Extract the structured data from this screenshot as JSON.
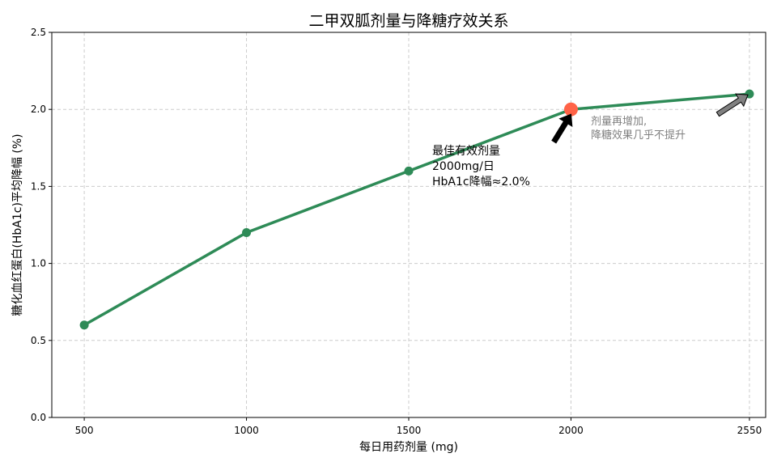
{
  "chart_data": {
    "type": "line",
    "title": "二甲双胍剂量与降糖疗效关系",
    "xlabel": "每日用药剂量 (mg)",
    "ylabel": "糖化血红蛋白(HbA1c)平均降幅 (%)",
    "x": [
      500,
      1000,
      1500,
      2000,
      2550
    ],
    "x_tick_labels": [
      "500",
      "1000",
      "1500",
      "2000",
      "2550"
    ],
    "y_ticks": [
      "0.0",
      "0.5",
      "1.0",
      "1.5",
      "2.0",
      "2.5"
    ],
    "ylim": [
      0,
      2.5
    ],
    "grid": true,
    "series": [
      {
        "values": [
          0.6,
          1.2,
          1.6,
          2.0,
          2.1
        ]
      }
    ],
    "highlight": {
      "x": 2000,
      "y": 2.0
    },
    "annotations": [
      {
        "lines": [
          "最佳有效剂量",
          "2000mg/日",
          "HbA1c降幅≈2.0%"
        ],
        "target_x": 2000,
        "target_y": 2.0
      },
      {
        "lines": [
          "剂量再增加,",
          "降糖效果几乎不提升"
        ],
        "target_x": 2550,
        "target_y": 2.1
      }
    ],
    "colors": {
      "line": "#2e8b57",
      "highlight": "#ff6347",
      "arrow_main": "#000000",
      "arrow_side": "#808080",
      "grid": "#cccccc"
    }
  }
}
